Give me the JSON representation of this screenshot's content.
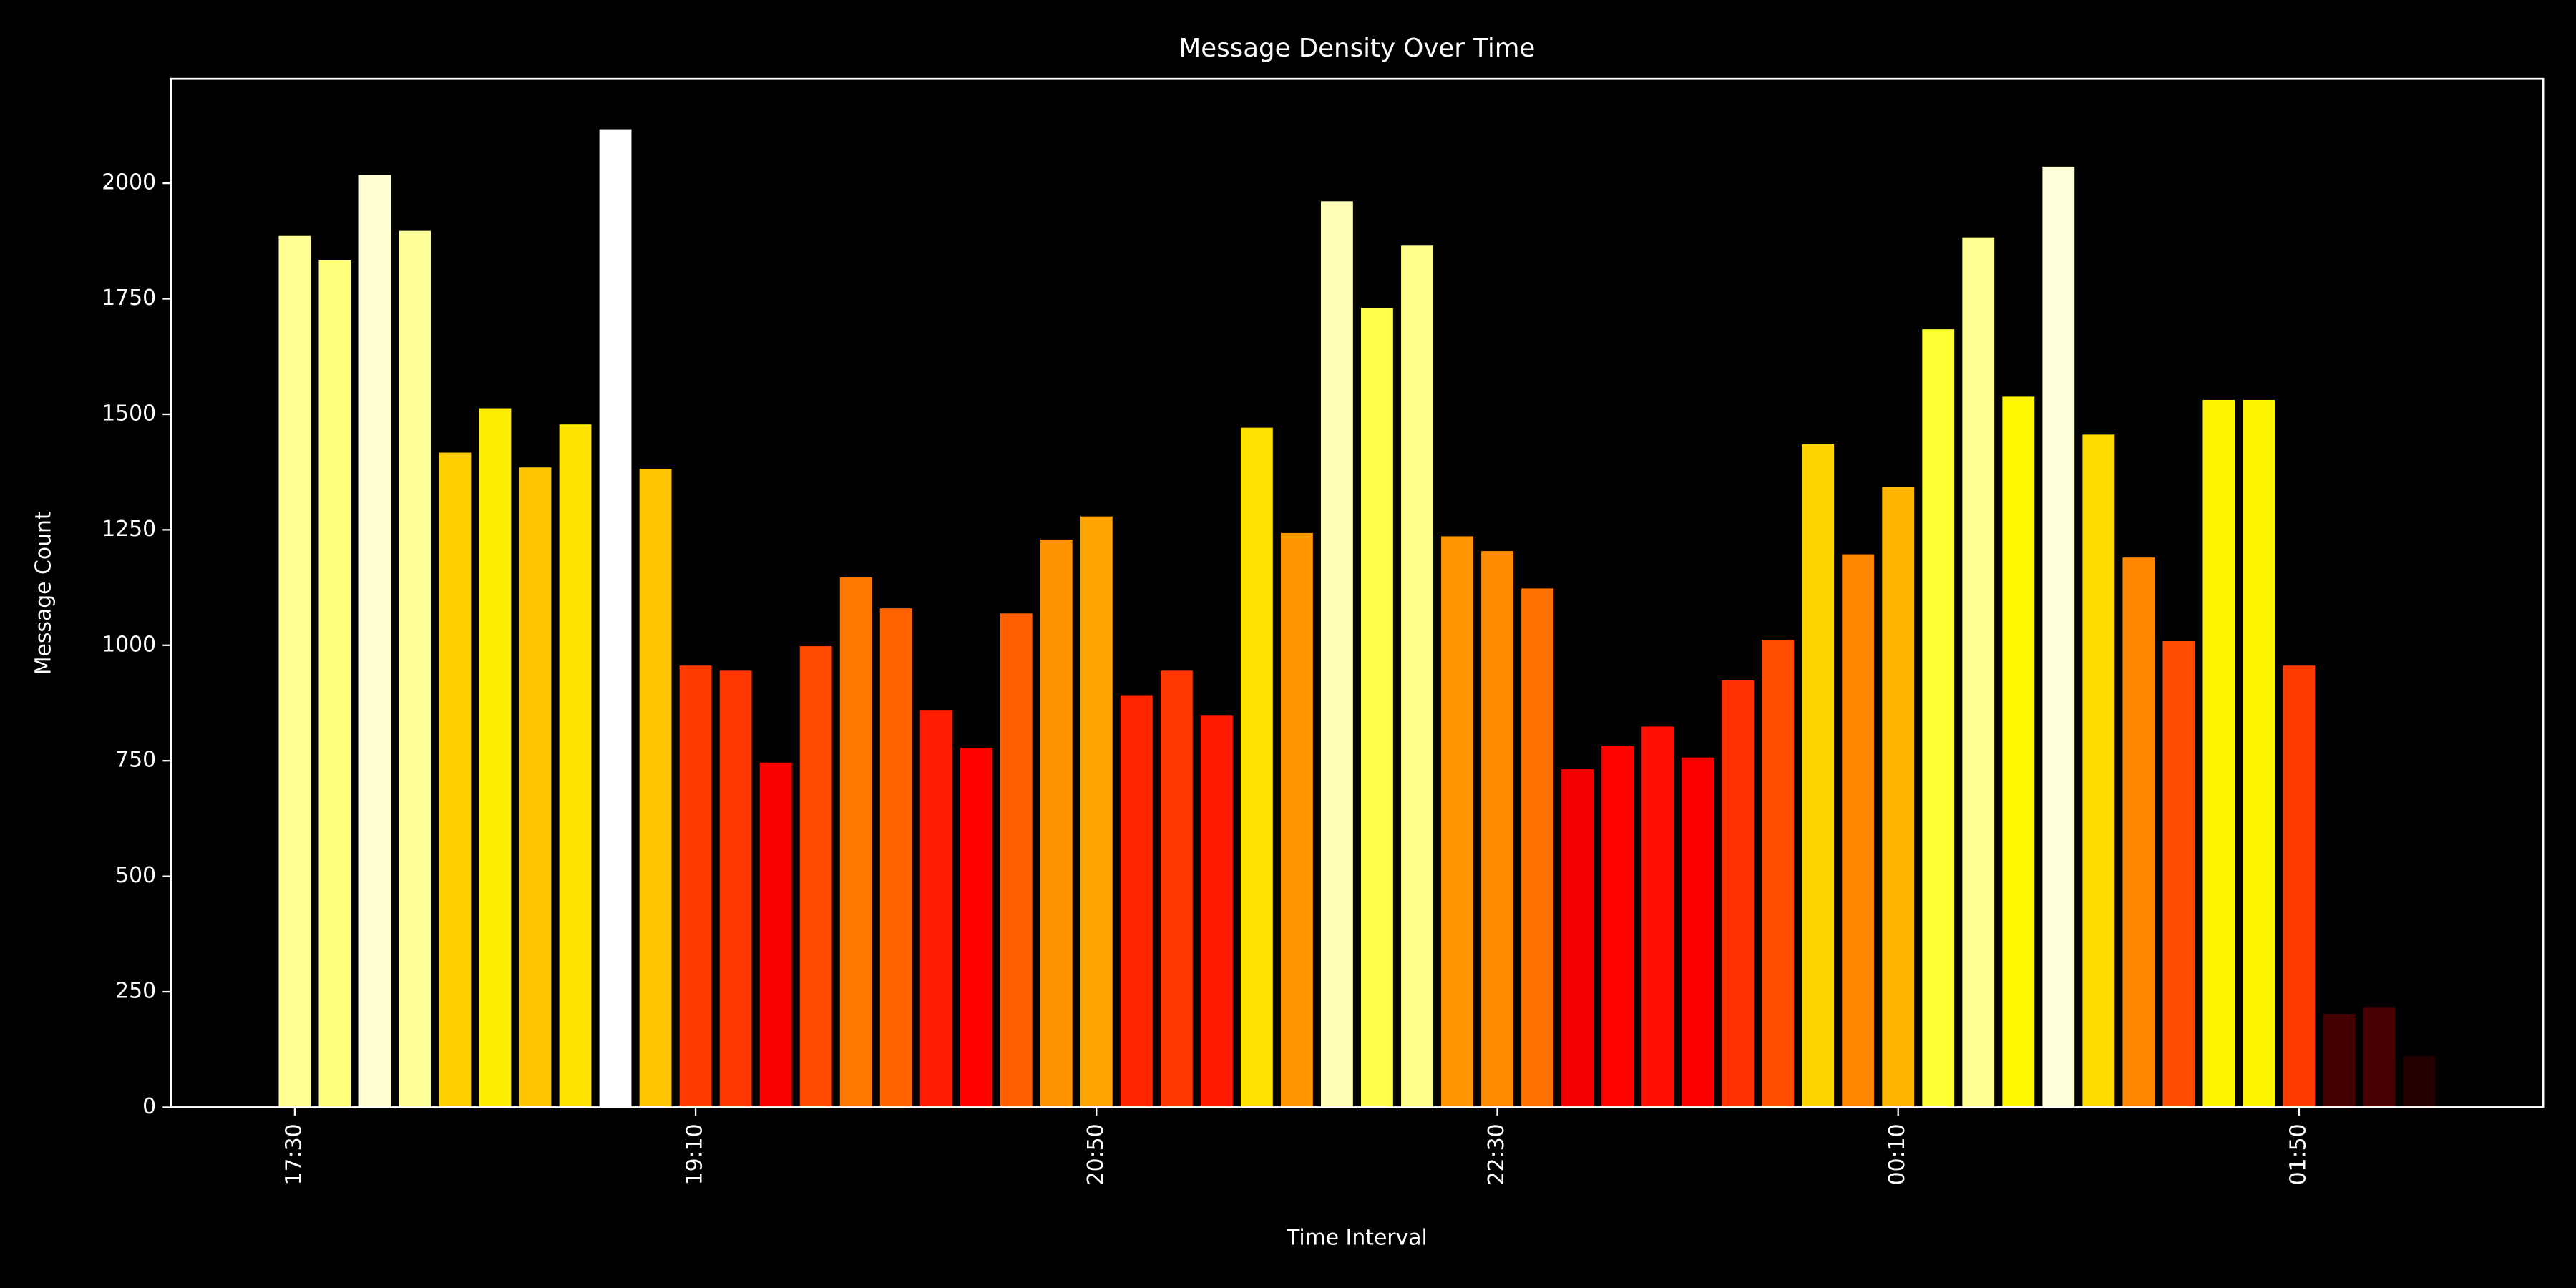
{
  "chart_data": {
    "type": "bar",
    "title": "Message Density Over Time",
    "x_label": "Time Interval",
    "y_label": "Message Count",
    "categories": [
      "17:30",
      null,
      null,
      null,
      null,
      null,
      null,
      null,
      null,
      null,
      "19:10",
      null,
      null,
      null,
      null,
      null,
      null,
      null,
      null,
      null,
      "20:50",
      null,
      null,
      null,
      null,
      null,
      null,
      null,
      null,
      null,
      "22:30",
      null,
      null,
      null,
      null,
      null,
      null,
      null,
      null,
      null,
      "00:10",
      null,
      null,
      null,
      null,
      null,
      null,
      null,
      null,
      null,
      "01:50",
      null,
      null,
      null
    ],
    "values": [
      1886,
      1833,
      2018,
      1897,
      1417,
      1513,
      1385,
      1478,
      2117,
      1382,
      956,
      945,
      746,
      998,
      1147,
      1080,
      860,
      778,
      1069,
      1229,
      1279,
      892,
      945,
      849,
      1471,
      1243,
      1961,
      1730,
      1865,
      1236,
      1204,
      1123,
      732,
      782,
      824,
      757,
      924,
      1012,
      1435,
      1197,
      1343,
      1684,
      1883,
      1538,
      2036,
      1456,
      1190,
      1009,
      1531,
      1531,
      956,
      202,
      217,
      110
    ],
    "colormap": "hot",
    "ylim": [
      0,
      2226
    ],
    "yticks": [
      0,
      250,
      500,
      750,
      1000,
      1250,
      1500,
      1750,
      2000
    ]
  }
}
